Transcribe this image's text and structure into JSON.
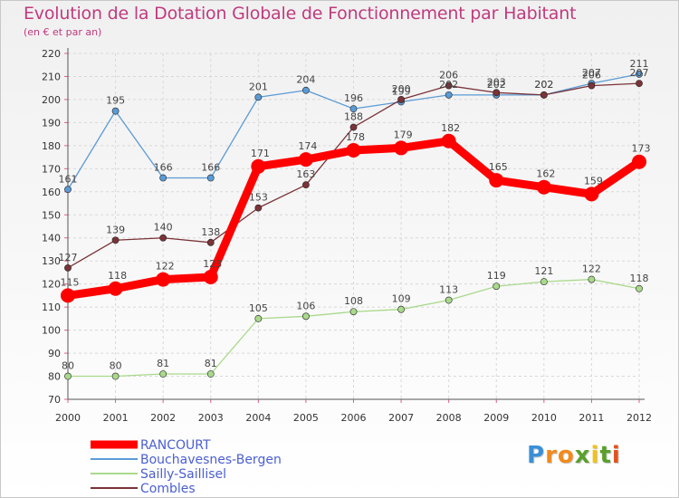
{
  "chart_data": {
    "type": "line",
    "title": "Evolution de la Dotation Globale de Fonctionnement par Habitant",
    "subtitle": "(en € et par an)",
    "xlabel": "",
    "ylabel": "",
    "x": [
      2000,
      2001,
      2002,
      2003,
      2004,
      2005,
      2006,
      2007,
      2008,
      2009,
      2010,
      2011,
      2012
    ],
    "ylim": [
      70,
      220
    ],
    "yticks": [
      70,
      80,
      90,
      100,
      110,
      120,
      130,
      140,
      150,
      160,
      170,
      180,
      190,
      200,
      210,
      220
    ],
    "grid": true,
    "legend_position": "bottom-left",
    "series": [
      {
        "name": "RANCOURT",
        "color": "#ff0000",
        "values": [
          115,
          118,
          122,
          123,
          171,
          174,
          178,
          179,
          182,
          165,
          162,
          159,
          173
        ]
      },
      {
        "name": "Bouchavesnes-Bergen",
        "color": "#5b9bd5",
        "values": [
          161,
          195,
          166,
          166,
          201,
          204,
          196,
          199,
          202,
          202,
          202,
          207,
          211
        ]
      },
      {
        "name": "Sailly-Saillisel",
        "color": "#a9d98b",
        "values": [
          80,
          80,
          81,
          81,
          105,
          106,
          108,
          109,
          113,
          119,
          121,
          122,
          118
        ]
      },
      {
        "name": "Combles",
        "color": "#7b3338",
        "values": [
          127,
          139,
          140,
          138,
          153,
          163,
          188,
          200,
          206,
          203,
          202,
          206,
          207
        ]
      }
    ]
  },
  "logo": {
    "letters": [
      "P",
      "r",
      "o",
      "x",
      "i",
      "t",
      "i"
    ],
    "colors": [
      "#3a8fd6",
      "#f28a1c",
      "#f28a1c",
      "#5aa02c",
      "#f2c21c",
      "#5aa02c",
      "#e0541c"
    ]
  }
}
